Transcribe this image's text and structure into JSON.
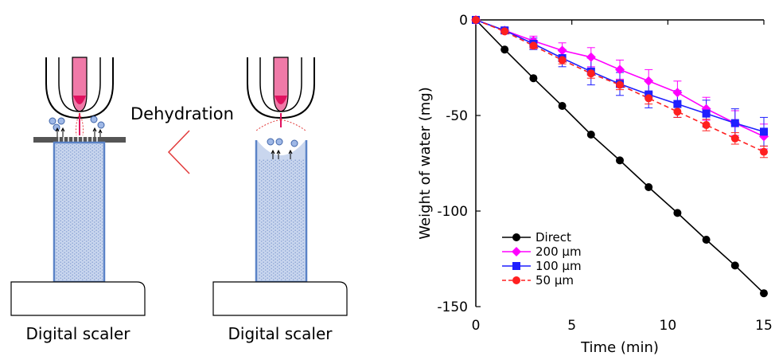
{
  "left_panel": {
    "process_label": "Dehydration",
    "scaler_left_label": "Digital scaler",
    "scaler_right_label": "Digital scaler"
  },
  "colors": {
    "needle": "#f07aa8",
    "needle_tip": "#e0115f",
    "water": "#5b83c7",
    "water_fill": "#c9d6ee",
    "plate": "#555555",
    "arrow": "#e23b3b"
  },
  "chart_data": {
    "type": "line",
    "xlabel": "Time (min)",
    "ylabel": "Weight of water (mg)",
    "xlim": [
      0,
      15
    ],
    "ylim": [
      -150,
      0
    ],
    "xticks": [
      0,
      5,
      10,
      15
    ],
    "yticks": [
      0,
      -50,
      -100,
      -150
    ],
    "grid": false,
    "legend_position": "lower-left",
    "series": [
      {
        "name": "Direct",
        "color": "#000000",
        "marker": "circle",
        "dashed": false,
        "x": [
          0,
          1.5,
          3,
          4.5,
          6,
          7.5,
          9,
          10.5,
          12,
          13.5,
          15
        ],
        "y": [
          0,
          -15.5,
          -30.5,
          -45,
          -60,
          -73.5,
          -87.5,
          -101,
          -115,
          -128.5,
          -143
        ],
        "err": [
          0,
          0,
          0,
          0,
          0,
          0,
          0,
          0,
          0,
          0,
          0
        ]
      },
      {
        "name": "200 µm",
        "color": "#ff00ff",
        "marker": "diamond",
        "dashed": false,
        "x": [
          0,
          1.5,
          3,
          4.5,
          6,
          7.5,
          9,
          10.5,
          12,
          13.5,
          15
        ],
        "y": [
          0,
          -5.5,
          -11,
          -16,
          -19.5,
          -26,
          -32,
          -38,
          -46.5,
          -54,
          -61
        ],
        "err": [
          0,
          1.5,
          2.5,
          4,
          5,
          5,
          6,
          6,
          6,
          6.5,
          6.5
        ]
      },
      {
        "name": "100 µm",
        "color": "#1f1fff",
        "marker": "square",
        "dashed": false,
        "x": [
          0,
          1.5,
          3,
          4.5,
          6,
          7.5,
          9,
          10.5,
          12,
          13.5,
          15
        ],
        "y": [
          0,
          -5.5,
          -12.5,
          -20,
          -27,
          -33.5,
          -39,
          -44,
          -49,
          -54,
          -58.5
        ],
        "err": [
          0,
          1.5,
          3,
          4.5,
          7,
          6,
          7,
          7,
          7,
          7.5,
          7.5
        ]
      },
      {
        "name": "50  µm",
        "color": "#ff2020",
        "marker": "circle",
        "dashed": true,
        "x": [
          0,
          1.5,
          3,
          4.5,
          6,
          7.5,
          9,
          10.5,
          12,
          13.5,
          15
        ],
        "y": [
          0,
          -6,
          -13.5,
          -21,
          -28,
          -34,
          -41,
          -48,
          -55,
          -62,
          -69
        ],
        "err": [
          0,
          1,
          1.5,
          2,
          2.5,
          2.5,
          3,
          3,
          3,
          3,
          3
        ]
      }
    ]
  }
}
